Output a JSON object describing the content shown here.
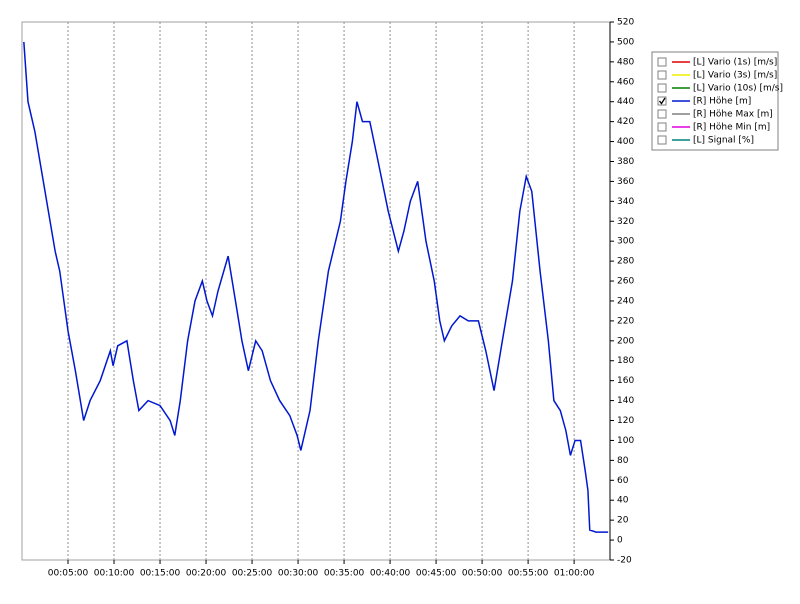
{
  "chart_data": {
    "type": "line",
    "x": [
      0.2,
      0.65,
      1.4,
      2.5,
      3.6,
      4.1,
      5.0,
      5.8,
      6.7,
      7.4,
      8.5,
      9.6,
      9.9,
      10.4,
      11.4,
      12.1,
      12.7,
      13.7,
      15.0,
      16.1,
      16.6,
      17.2,
      18.0,
      18.8,
      19.6,
      20.1,
      20.7,
      21.3,
      22.4,
      23.2,
      23.9,
      24.6,
      25.4,
      26.1,
      27.0,
      28.0,
      29.1,
      29.9,
      30.3,
      31.3,
      32.2,
      33.3,
      34.6,
      35.2,
      35.9,
      36.4,
      37.0,
      37.8,
      38.7,
      39.8,
      40.9,
      41.5,
      42.2,
      43.0,
      43.9,
      44.8,
      45.4,
      45.9,
      46.7,
      47.6,
      48.5,
      49.6,
      50.4,
      51.3,
      52.2,
      53.3,
      54.1,
      54.8,
      55.4,
      56.3,
      57.2,
      57.8,
      58.5,
      59.1,
      59.6,
      60.1,
      60.7,
      61.2,
      61.5,
      61.7,
      62.4,
      63.7
    ],
    "series": [
      {
        "name": "[L] Vario (1s) [m/s]",
        "color": "#e00000",
        "visible": false
      },
      {
        "name": "[L] Vario (3s) [m/s]",
        "color": "#f0f000",
        "visible": false
      },
      {
        "name": "[L] Vario (10s) [m/s]",
        "color": "#008000",
        "visible": false
      },
      {
        "name": "[R] Höhe [m]",
        "color": "#0018d0",
        "visible": true,
        "axis": "y2",
        "values": [
          500,
          440,
          410,
          350,
          290,
          270,
          210,
          170,
          120,
          140,
          160,
          190,
          175,
          195,
          200,
          160,
          130,
          140,
          135,
          120,
          105,
          140,
          200,
          240,
          260,
          240,
          225,
          250,
          285,
          240,
          200,
          170,
          200,
          190,
          160,
          140,
          125,
          105,
          90,
          130,
          200,
          270,
          320,
          360,
          400,
          440,
          420,
          420,
          380,
          330,
          290,
          310,
          340,
          360,
          300,
          260,
          220,
          200,
          215,
          225,
          220,
          220,
          190,
          150,
          200,
          260,
          330,
          365,
          350,
          270,
          200,
          140,
          130,
          110,
          85,
          100,
          100,
          70,
          50,
          10,
          8,
          8
        ]
      },
      {
        "name": "[R] Höhe Max [m]",
        "color": "#808080",
        "visible": false
      },
      {
        "name": "[R] Höhe Min [m]",
        "color": "#e000e0",
        "visible": false
      },
      {
        "name": "[L] Signal [%]",
        "color": "#008080",
        "visible": false
      }
    ],
    "xlim": [
      0,
      63.9
    ],
    "xticks": [
      {
        "value": 5,
        "label": "00:05:00"
      },
      {
        "value": 10,
        "label": "00:10:00"
      },
      {
        "value": 15,
        "label": "00:15:00"
      },
      {
        "value": 20,
        "label": "00:20:00"
      },
      {
        "value": 25,
        "label": "00:25:00"
      },
      {
        "value": 30,
        "label": "00:30:00"
      },
      {
        "value": 35,
        "label": "00:35:00"
      },
      {
        "value": 40,
        "label": "00:40:00"
      },
      {
        "value": 45,
        "label": "00:45:00"
      },
      {
        "value": 50,
        "label": "00:50:00"
      },
      {
        "value": 55,
        "label": "00:55:00"
      },
      {
        "value": 60,
        "label": "01:00:00"
      }
    ],
    "y2lim": [
      -20,
      520
    ],
    "y2ticks": [
      -20,
      0,
      20,
      40,
      60,
      80,
      100,
      120,
      140,
      160,
      180,
      200,
      220,
      240,
      260,
      280,
      300,
      320,
      340,
      360,
      380,
      400,
      420,
      440,
      460,
      480,
      500,
      520
    ],
    "grid": "x-dashed"
  }
}
